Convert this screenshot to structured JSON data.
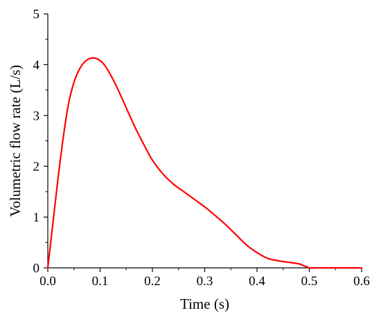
{
  "chart_data": {
    "type": "line",
    "xlabel": "Time (s)",
    "ylabel": "Volumetric flow rate (L/s)",
    "xlim": [
      0.0,
      0.6
    ],
    "ylim": [
      0,
      5
    ],
    "xticks": [
      "0.0",
      "0.1",
      "0.2",
      "0.3",
      "0.4",
      "0.5",
      "0.6"
    ],
    "yticks": [
      "0",
      "1",
      "2",
      "3",
      "4",
      "5"
    ],
    "grid": false,
    "line_color": "#ff0000",
    "series": [
      {
        "x": [
          0.0,
          0.01,
          0.02,
          0.03,
          0.04,
          0.05,
          0.06,
          0.07,
          0.08,
          0.09,
          0.1,
          0.11,
          0.12,
          0.13,
          0.14,
          0.15,
          0.16,
          0.17,
          0.18,
          0.19,
          0.2,
          0.22,
          0.24,
          0.26,
          0.28,
          0.3,
          0.32,
          0.34,
          0.36,
          0.38,
          0.4,
          0.42,
          0.44,
          0.46,
          0.48,
          0.49,
          0.5,
          0.51,
          0.53,
          0.55,
          0.6
        ],
        "y": [
          0.0,
          0.9,
          1.8,
          2.6,
          3.25,
          3.65,
          3.9,
          4.05,
          4.12,
          4.13,
          4.08,
          3.97,
          3.8,
          3.6,
          3.38,
          3.15,
          2.92,
          2.7,
          2.5,
          2.3,
          2.12,
          1.85,
          1.65,
          1.5,
          1.35,
          1.2,
          1.03,
          0.85,
          0.65,
          0.45,
          0.3,
          0.19,
          0.14,
          0.11,
          0.08,
          0.04,
          0.0,
          0.0,
          0.0,
          0.0,
          0.0
        ]
      }
    ]
  }
}
